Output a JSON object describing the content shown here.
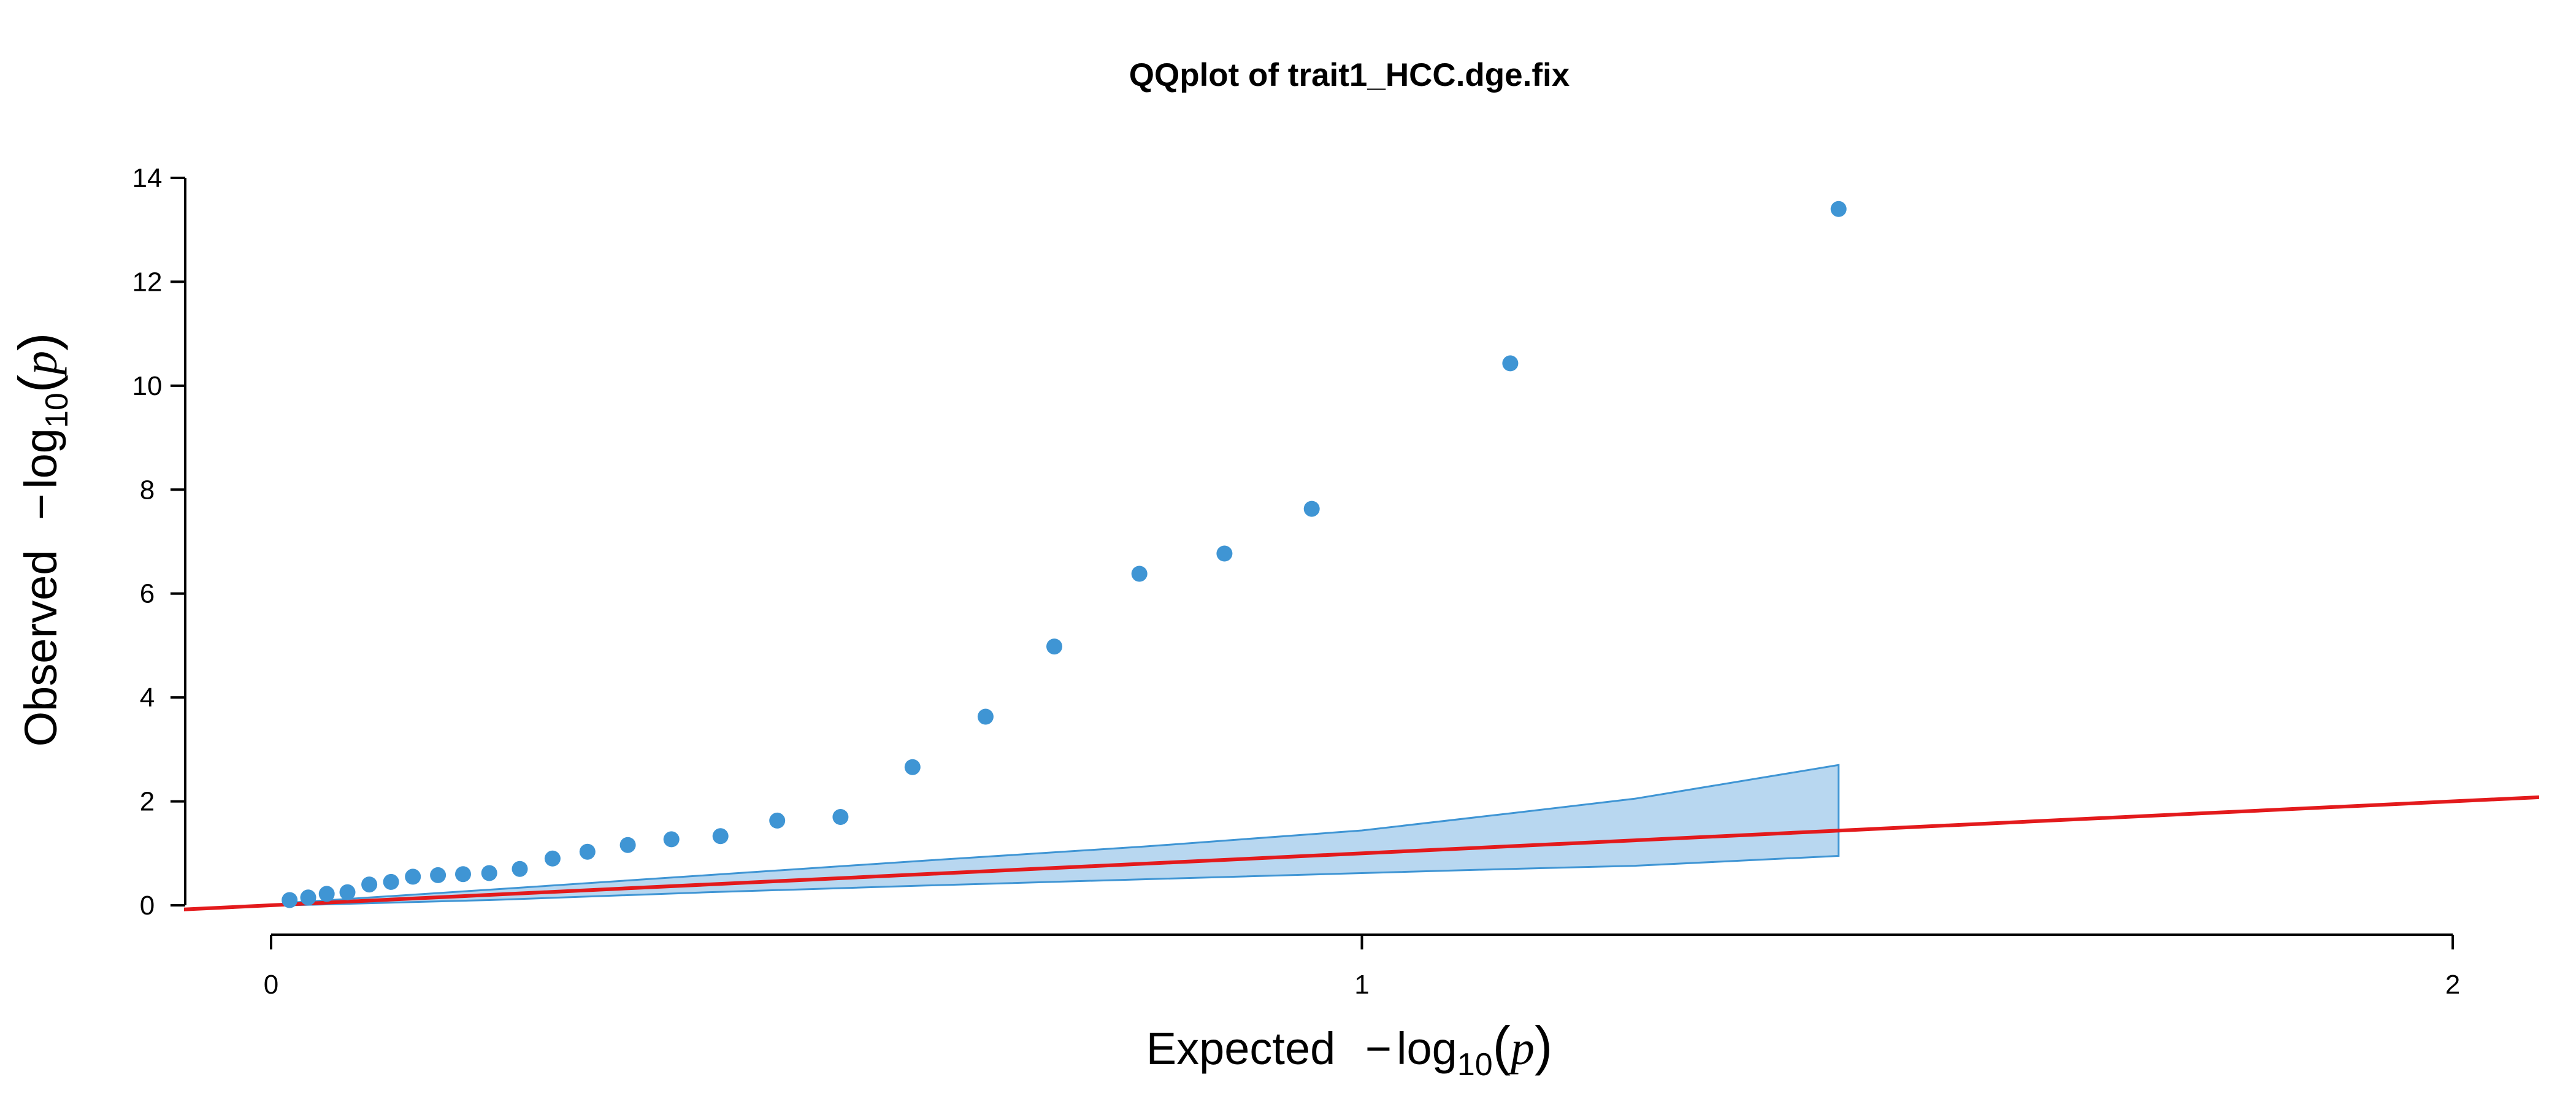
{
  "chart_data": {
    "type": "scatter",
    "title": "QQplot of trait1_HCC.dge.fix",
    "xlabel": {
      "prefix": "Expected",
      "minus": "−",
      "log": "log",
      "base": "10",
      "open_paren": "(",
      "var": "p",
      "close_paren": ")"
    },
    "ylabel": {
      "prefix": "Observed",
      "minus": "−",
      "log": "log",
      "base": "10",
      "open_paren": "(",
      "var": "p",
      "close_paren": ")"
    },
    "xlim": [
      -0.08,
      2.08
    ],
    "ylim": [
      -0.1,
      14.2
    ],
    "xticks": [
      0,
      1,
      2
    ],
    "xtick_labels": [
      "0",
      "1",
      "2"
    ],
    "yticks": [
      0,
      2,
      4,
      6,
      8,
      10,
      12,
      14
    ],
    "ytick_labels": [
      "0",
      "2",
      "4",
      "6",
      "8",
      "10",
      "12",
      "14"
    ],
    "grid": false,
    "legend": "none",
    "colors": {
      "points": "#3f95d4",
      "reference_line": "#e31a1c",
      "band_fill": "#b8d7f0",
      "band_stroke": "#3f95d4"
    },
    "points": {
      "x": [
        0.017,
        0.034,
        0.051,
        0.07,
        0.09,
        0.11,
        0.13,
        0.153,
        0.176,
        0.2,
        0.228,
        0.258,
        0.29,
        0.327,
        0.367,
        0.412,
        0.464,
        0.522,
        0.588,
        0.655,
        0.718,
        0.796,
        0.874,
        0.954,
        1.136,
        1.437
      ],
      "y": [
        0.1,
        0.15,
        0.22,
        0.25,
        0.4,
        0.45,
        0.55,
        0.58,
        0.6,
        0.62,
        0.7,
        0.9,
        1.03,
        1.16,
        1.27,
        1.33,
        1.63,
        1.7,
        2.66,
        3.63,
        4.98,
        6.38,
        6.77,
        7.63,
        10.43,
        13.4
      ]
    },
    "reference_line": {
      "x": [
        -0.08,
        2.08
      ],
      "y": [
        -0.08,
        2.08
      ]
    },
    "confidence_band": {
      "x": [
        0.017,
        0.2,
        0.4,
        0.6,
        0.8,
        1.0,
        1.136,
        1.25,
        1.437
      ],
      "lower": [
        0.0,
        0.1,
        0.25,
        0.38,
        0.5,
        0.62,
        0.7,
        0.76,
        0.95
      ],
      "upper": [
        0.05,
        0.3,
        0.58,
        0.86,
        1.13,
        1.44,
        1.77,
        2.05,
        2.7
      ]
    }
  }
}
